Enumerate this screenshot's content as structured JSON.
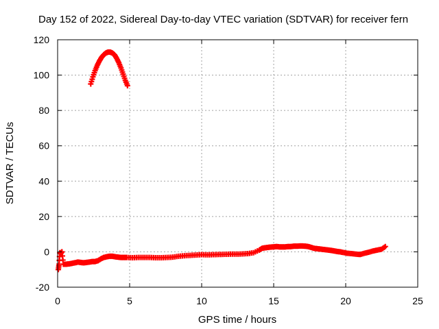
{
  "chart_data": {
    "type": "scatter",
    "title": "Day 152 of 2022, Sidereal Day-to-day VTEC variation (SDTVAR) for receiver fern",
    "xlabel": "GPS time / hours",
    "ylabel": "SDTVAR / TECUs",
    "xlim": [
      0,
      25
    ],
    "ylim": [
      -20,
      120
    ],
    "xticks": [
      "0",
      "5",
      "10",
      "15",
      "20",
      "25"
    ],
    "yticks": [
      "-20",
      "0",
      "20",
      "40",
      "60",
      "80",
      "100",
      "120"
    ],
    "grid": true,
    "legend": "none",
    "marker": "plus",
    "color": "#ff0000",
    "series": [
      {
        "points": [
          [
            2.3,
            95
          ],
          [
            2.45,
            99
          ],
          [
            2.6,
            102.5
          ],
          [
            2.75,
            105.5
          ],
          [
            2.9,
            108
          ],
          [
            3.05,
            110
          ],
          [
            3.2,
            111.5
          ],
          [
            3.35,
            112.5
          ],
          [
            3.5,
            113
          ],
          [
            3.65,
            113
          ],
          [
            3.8,
            112.5
          ],
          [
            3.95,
            111.5
          ],
          [
            4.1,
            109.5
          ],
          [
            4.25,
            107
          ],
          [
            4.4,
            104
          ],
          [
            4.55,
            100.5
          ],
          [
            4.7,
            97
          ],
          [
            4.85,
            94
          ]
        ]
      },
      {
        "points": [
          [
            0.05,
            -10
          ],
          [
            0.1,
            -7
          ],
          [
            0.15,
            -0.5
          ],
          [
            0.2,
            -1
          ],
          [
            0.3,
            0
          ],
          [
            0.4,
            -7
          ],
          [
            0.6,
            -7
          ],
          [
            0.8,
            -6.8
          ],
          [
            1.0,
            -6.5
          ],
          [
            1.2,
            -6.2
          ],
          [
            1.4,
            -5.8
          ],
          [
            1.6,
            -6
          ],
          [
            1.8,
            -6.2
          ],
          [
            2.0,
            -6
          ],
          [
            2.2,
            -5.8
          ],
          [
            2.4,
            -5.5
          ],
          [
            2.6,
            -5.5
          ],
          [
            2.8,
            -5
          ],
          [
            3.0,
            -4
          ],
          [
            3.2,
            -3.2
          ],
          [
            3.4,
            -2.8
          ],
          [
            3.6,
            -2.5
          ],
          [
            3.8,
            -2.5
          ],
          [
            4.0,
            -2.8
          ],
          [
            4.2,
            -3
          ],
          [
            4.4,
            -3.2
          ],
          [
            4.6,
            -3.2
          ],
          [
            4.8,
            -3.2
          ],
          [
            5.2,
            -3.3
          ],
          [
            5.6,
            -3.2
          ],
          [
            6.0,
            -3.2
          ],
          [
            6.4,
            -3.2
          ],
          [
            6.8,
            -3.3
          ],
          [
            7.2,
            -3.3
          ],
          [
            7.6,
            -3.2
          ],
          [
            8.0,
            -3
          ],
          [
            8.4,
            -2.5
          ],
          [
            8.8,
            -2.2
          ],
          [
            9.2,
            -2
          ],
          [
            9.6,
            -1.8
          ],
          [
            10.0,
            -1.6
          ],
          [
            10.4,
            -1.7
          ],
          [
            10.8,
            -1.6
          ],
          [
            11.2,
            -1.5
          ],
          [
            11.6,
            -1.4
          ],
          [
            12.0,
            -1.3
          ],
          [
            12.4,
            -1.3
          ],
          [
            12.8,
            -1.2
          ],
          [
            13.2,
            -1
          ],
          [
            13.6,
            -0.5
          ],
          [
            14.0,
            1
          ],
          [
            14.2,
            2
          ],
          [
            14.4,
            2.3
          ],
          [
            14.6,
            2.5
          ],
          [
            14.8,
            2.7
          ],
          [
            15.0,
            2.8
          ],
          [
            15.2,
            3
          ],
          [
            15.4,
            2.8
          ],
          [
            15.6,
            2.8
          ],
          [
            15.8,
            2.8
          ],
          [
            16.0,
            3
          ],
          [
            16.2,
            3
          ],
          [
            16.4,
            3.2
          ],
          [
            16.6,
            3.2
          ],
          [
            16.8,
            3.3
          ],
          [
            17.0,
            3.3
          ],
          [
            17.2,
            3.2
          ],
          [
            17.4,
            3
          ],
          [
            17.6,
            2.5
          ],
          [
            17.8,
            2
          ],
          [
            18.0,
            1.8
          ],
          [
            18.2,
            1.6
          ],
          [
            18.4,
            1.4
          ],
          [
            18.6,
            1.2
          ],
          [
            18.8,
            1
          ],
          [
            19.0,
            0.8
          ],
          [
            19.2,
            0.5
          ],
          [
            19.4,
            0.2
          ],
          [
            19.6,
            0
          ],
          [
            19.8,
            -0.3
          ],
          [
            20.1,
            -0.8
          ],
          [
            20.4,
            -1
          ],
          [
            20.7,
            -1.3
          ],
          [
            21.0,
            -1.5
          ],
          [
            21.3,
            -0.8
          ],
          [
            21.6,
            -0.2
          ],
          [
            21.9,
            0.5
          ],
          [
            22.2,
            1
          ],
          [
            22.5,
            1.5
          ],
          [
            22.75,
            3
          ]
        ]
      }
    ]
  }
}
